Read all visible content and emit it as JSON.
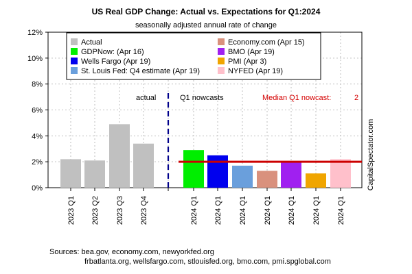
{
  "chart_data": {
    "type": "bar",
    "title": "US Real GDP Change: Actual vs. Expectations for Q1:2024",
    "subtitle": "seasonally adjusted annual rate of change",
    "ylim": [
      0,
      12
    ],
    "yticks": [
      "0%",
      "2%",
      "4%",
      "6%",
      "8%",
      "10%",
      "12%"
    ],
    "grid": true,
    "bars": [
      {
        "label": "2023 Q1",
        "value": 2.2,
        "series": "Actual",
        "color": "#c0c0c0"
      },
      {
        "label": "2023 Q2",
        "value": 2.1,
        "series": "Actual",
        "color": "#c0c0c0"
      },
      {
        "label": "2023 Q3",
        "value": 4.9,
        "series": "Actual",
        "color": "#c0c0c0"
      },
      {
        "label": "2023 Q4",
        "value": 3.4,
        "series": "Actual",
        "color": "#c0c0c0"
      },
      {
        "label": "2024 Q1",
        "value": 2.9,
        "series": "GDPNow: (Apr 16)",
        "color": "#00ee00"
      },
      {
        "label": "2024 Q1",
        "value": 2.5,
        "series": "Wells Fargo (Apr 19)",
        "color": "#0000ee"
      },
      {
        "label": "2024 Q1",
        "value": 1.7,
        "series": "St. Louis Fed: Q4 estimate (Apr 19)",
        "color": "#6a9fdc"
      },
      {
        "label": "2024 Q1",
        "value": 1.3,
        "series": "Economy.com (Apr 15)",
        "color": "#d9917d"
      },
      {
        "label": "2024 Q1",
        "value": 2.0,
        "series": "BMO (Apr 19)",
        "color": "#a020f0"
      },
      {
        "label": "2024 Q1",
        "value": 1.1,
        "series": "PMI (Apr 3)",
        "color": "#f0a500"
      },
      {
        "label": "2024 Q1",
        "value": 2.2,
        "series": "NYFED (Apr 19)",
        "color": "#ffc0cb"
      }
    ],
    "median": {
      "value": 2,
      "label": "Median Q1 nowcast:",
      "value_label": "2",
      "color": "#cc0000"
    },
    "legend": {
      "placement": "top",
      "left": [
        {
          "name": "Actual",
          "color": "#c0c0c0"
        },
        {
          "name": "GDPNow: (Apr 16)",
          "color": "#00ee00"
        },
        {
          "name": "Wells Fargo (Apr 19)",
          "color": "#0000ee"
        },
        {
          "name": "St. Louis Fed: Q4 estimate (Apr 19)",
          "color": "#6a9fdc"
        }
      ],
      "right": [
        {
          "name": "Economy.com (Apr 15)",
          "color": "#d9917d"
        },
        {
          "name": "BMO (Apr 19)",
          "color": "#a020f0"
        },
        {
          "name": "PMI (Apr 3)",
          "color": "#f0a500"
        },
        {
          "name": "NYFED (Apr 19)",
          "color": "#ffc0cb"
        }
      ]
    },
    "annotations": {
      "actual": "actual",
      "nowcasts": "Q1 nowcasts"
    },
    "watermark": "CapitalSpectator.com",
    "sources": [
      "Sources: bea.gov, economy.com, newyorkfed.org",
      "frbatlanta.org, wellsfargo.com, stlouisfed.org, bmo.com, pmi.spglobal.com"
    ]
  }
}
